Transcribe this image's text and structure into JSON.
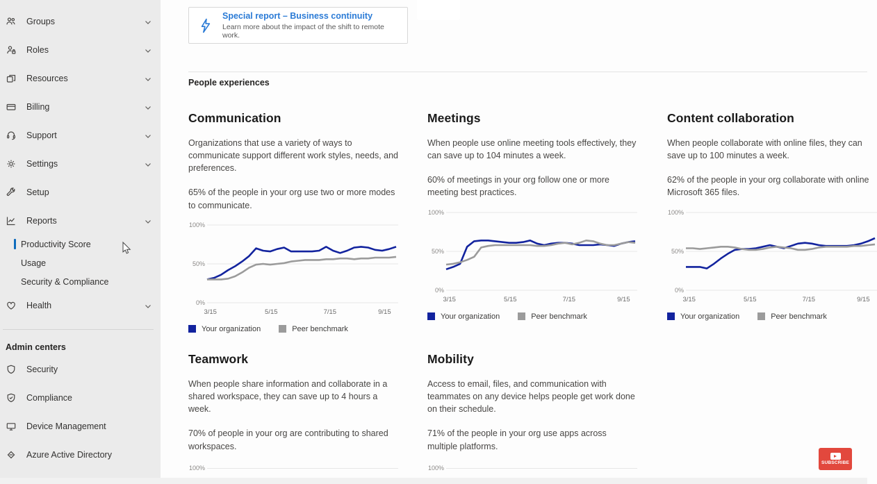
{
  "sidebar": {
    "items": [
      {
        "label": "Groups"
      },
      {
        "label": "Roles"
      },
      {
        "label": "Resources"
      },
      {
        "label": "Billing"
      },
      {
        "label": "Support"
      },
      {
        "label": "Settings"
      },
      {
        "label": "Setup"
      },
      {
        "label": "Reports"
      },
      {
        "label": "Health"
      }
    ],
    "reports_children": [
      {
        "label": "Productivity Score",
        "selected": true
      },
      {
        "label": "Usage",
        "selected": false
      },
      {
        "label": "Security & Compliance",
        "selected": false
      }
    ],
    "admin_heading": "Admin centers",
    "admin_items": [
      {
        "label": "Security"
      },
      {
        "label": "Compliance"
      },
      {
        "label": "Device Management"
      },
      {
        "label": "Azure Active Directory"
      }
    ]
  },
  "banner": {
    "title": "Special report – Business continuity",
    "subtitle": "Learn more about the impact of the shift to remote work."
  },
  "section_heading": "People experiences",
  "cards": [
    {
      "title": "Communication",
      "p1": "Organizations that use a variety of ways to communicate support different work styles, needs, and preferences.",
      "p2": "65% of the people in your org use two or more modes to communicate."
    },
    {
      "title": "Meetings",
      "p1": "When people use online meeting tools effectively, they can save up to 104 minutes a week.",
      "p2": "60% of meetings in your org follow one or more meeting best practices."
    },
    {
      "title": "Content collaboration",
      "p1": "When people collaborate with online files, they can save up to 100 minutes a week.",
      "p2": "62% of the people in your org collaborate with online Microsoft 365 files."
    },
    {
      "title": "Teamwork",
      "p1": "When people share information and collaborate in a shared workspace, they can save up to 4 hours a week.",
      "p2": "70% of people in your org are contributing to shared workspaces."
    },
    {
      "title": "Mobility",
      "p1": "Access to email, files, and communication with teammates on any device helps people get work done on their schedule.",
      "p2": "71% of the people in your org use apps across multiple platforms."
    }
  ],
  "chart_data": [
    {
      "type": "line",
      "title": "Communication",
      "x_ticks": [
        "3/15",
        "5/15",
        "7/15",
        "9/15"
      ],
      "ylim": [
        0,
        100
      ],
      "yticks": [
        "100%",
        "50%",
        "0%"
      ],
      "grid": true,
      "legend_position": "bottom",
      "series": [
        {
          "name": "Your organization",
          "color": "#12239e",
          "values": [
            30,
            32,
            36,
            42,
            47,
            53,
            60,
            70,
            67,
            66,
            69,
            71,
            66,
            66,
            66,
            66,
            67,
            72,
            67,
            64,
            67,
            71,
            72,
            71,
            68,
            67,
            69,
            72
          ]
        },
        {
          "name": "Peer benchmark",
          "color": "#9b9b9b",
          "values": [
            30,
            30,
            30,
            31,
            34,
            39,
            45,
            49,
            50,
            49,
            50,
            51,
            53,
            54,
            55,
            55,
            55,
            56,
            56,
            57,
            57,
            56,
            57,
            57,
            58,
            58,
            58,
            59
          ]
        }
      ]
    },
    {
      "type": "line",
      "title": "Meetings",
      "x_ticks": [
        "3/15",
        "5/15",
        "7/15",
        "9/15"
      ],
      "ylim": [
        0,
        100
      ],
      "yticks": [
        "100%",
        "50%",
        "0%"
      ],
      "grid": true,
      "legend_position": "bottom",
      "series": [
        {
          "name": "Your organization",
          "color": "#12239e",
          "values": [
            27,
            30,
            34,
            56,
            63,
            64,
            64,
            63,
            62,
            61,
            61,
            62,
            64,
            60,
            58,
            60,
            61,
            61,
            60,
            58,
            58,
            58,
            59,
            58,
            57,
            60,
            62,
            63
          ]
        },
        {
          "name": "Peer benchmark",
          "color": "#9b9b9b",
          "values": [
            33,
            34,
            36,
            39,
            43,
            55,
            57,
            58,
            58,
            58,
            58,
            58,
            58,
            57,
            57,
            58,
            60,
            61,
            59,
            61,
            64,
            63,
            60,
            58,
            58,
            60,
            62,
            61
          ]
        }
      ]
    },
    {
      "type": "line",
      "title": "Content collaboration",
      "x_ticks": [
        "3/15",
        "5/15",
        "7/15",
        "9/15"
      ],
      "ylim": [
        0,
        100
      ],
      "yticks": [
        "100%",
        "50%",
        "0%"
      ],
      "grid": true,
      "legend_position": "bottom",
      "series": [
        {
          "name": "Your organization",
          "color": "#12239e",
          "values": [
            30,
            30,
            30,
            28,
            34,
            41,
            47,
            52,
            53,
            53,
            54,
            56,
            58,
            56,
            54,
            57,
            60,
            61,
            60,
            58,
            57,
            57,
            57,
            57,
            58,
            60,
            63,
            67
          ]
        },
        {
          "name": "Peer benchmark",
          "color": "#9b9b9b",
          "values": [
            54,
            54,
            53,
            54,
            55,
            56,
            56,
            55,
            53,
            52,
            52,
            53,
            55,
            56,
            55,
            54,
            52,
            52,
            53,
            55,
            56,
            56,
            56,
            56,
            57,
            57,
            58,
            59
          ]
        }
      ]
    },
    {
      "type": "line",
      "title": "Teamwork",
      "truncated": true,
      "visible_ytick": "100%"
    },
    {
      "type": "line",
      "title": "Mobility",
      "truncated": true,
      "visible_ytick": "100%"
    }
  ],
  "colors": {
    "accent_blue": "#0f6cbd",
    "banner_blue": "#2b7bd6",
    "chart_blue": "#12239e",
    "chart_gray": "#9b9b9b"
  },
  "subscribe": {
    "label": "SUBSCRIBE"
  }
}
